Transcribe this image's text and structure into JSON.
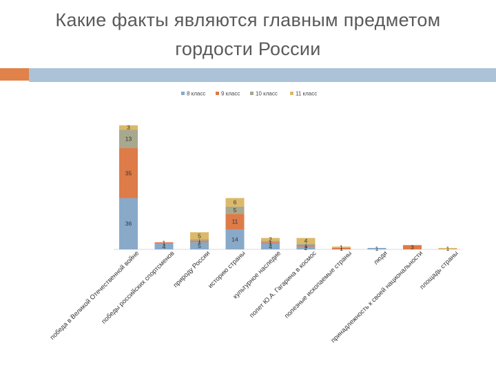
{
  "slide": {
    "title_line1": "Какие факты являются главным предметом",
    "title_line2": "гордости России"
  },
  "colors": {
    "accent_orange": "#e0824a",
    "accent_blue": "#abc2d8"
  },
  "chart_data": {
    "type": "bar",
    "stacked": true,
    "categories": [
      "победа в Великой Отечественной войне",
      "победы российских спортсменов",
      "природу России",
      "историю страны",
      "культурное наследие",
      "полет Ю.А. Гагарина в космос",
      "полезные ископаемые страны",
      "люди",
      "принадлежность к своей национальности",
      "площадь страны"
    ],
    "series": [
      {
        "name": "8 класс",
        "color": "#89a9c9",
        "values": [
          36,
          4,
          5,
          14,
          4,
          2,
          0,
          1,
          0,
          0
        ]
      },
      {
        "name": "9 класс",
        "color": "#dd7b49",
        "values": [
          35,
          1,
          1,
          11,
          1,
          1,
          1,
          0,
          3,
          0
        ]
      },
      {
        "name": "10 класс",
        "color": "#a7a88d",
        "values": [
          13,
          0,
          1,
          5,
          1,
          1,
          0,
          0,
          0,
          0
        ]
      },
      {
        "name": "11 класс",
        "color": "#dcb969",
        "values": [
          3,
          0,
          5,
          6,
          2,
          4,
          1,
          0,
          0,
          1
        ]
      }
    ],
    "legend_position": "top",
    "grid": false,
    "ylim": [
      0,
      87
    ]
  }
}
